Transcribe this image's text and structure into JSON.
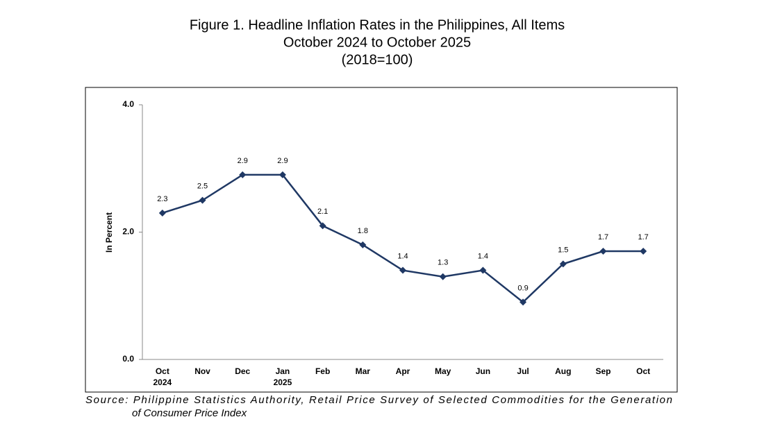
{
  "chart_data": {
    "type": "line",
    "title": [
      "Figure 1. Headline Inflation Rates in the Philippines, All Items",
      "October 2024 to October 2025",
      "(2018=100)"
    ],
    "ylabel": "In Percent",
    "categories": [
      "Oct",
      "Nov",
      "Dec",
      "Jan",
      "Feb",
      "Mar",
      "Apr",
      "May",
      "Jun",
      "Jul",
      "Aug",
      "Sep",
      "Oct"
    ],
    "category_years": [
      "2024",
      null,
      null,
      "2025",
      null,
      null,
      null,
      null,
      null,
      null,
      null,
      null,
      null
    ],
    "values": [
      2.3,
      2.5,
      2.9,
      2.9,
      2.1,
      1.8,
      1.4,
      1.3,
      1.4,
      0.9,
      1.5,
      1.7,
      1.7
    ],
    "color": "#1f3864",
    "ylim": [
      0,
      4
    ],
    "yticks": [
      {
        "value": 0,
        "label": "0.0"
      },
      {
        "value": 2,
        "label": "2.0"
      },
      {
        "value": 4,
        "label": "4.0"
      }
    ],
    "source": [
      "Source:  Philippine  Statistics  Authority,  Retail  Price  Survey  of  Selected  Commodities  for  the  Generation",
      "of Consumer Price Index"
    ]
  }
}
